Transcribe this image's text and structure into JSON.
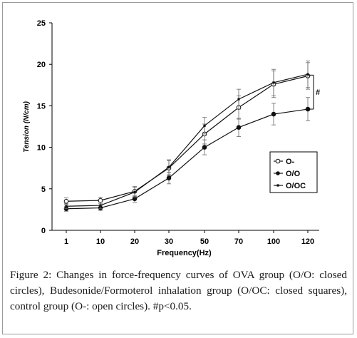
{
  "chart_data": {
    "type": "line",
    "xlabel": "Frequency(Hz)",
    "ylabel": "Tension (N/cm)",
    "categories": [
      "1",
      "10",
      "20",
      "30",
      "50",
      "70",
      "100",
      "120"
    ],
    "ylim": [
      0,
      25
    ],
    "yticks": [
      "0",
      "5",
      "10",
      "15",
      "20",
      "25"
    ],
    "grid": false,
    "legend_position": "right-middle",
    "series": [
      {
        "name": "O-",
        "marker": "open-circle",
        "values": [
          3.5,
          3.6,
          4.7,
          7.5,
          11.6,
          14.8,
          17.6,
          18.6
        ],
        "errors": [
          0.4,
          0.4,
          0.6,
          0.9,
          1.2,
          1.4,
          1.6,
          1.6
        ]
      },
      {
        "name": "O/O",
        "marker": "closed-circle",
        "values": [
          2.6,
          2.7,
          3.8,
          6.3,
          10.0,
          12.4,
          14.0,
          14.6
        ],
        "errors": [
          0.3,
          0.3,
          0.4,
          0.7,
          0.9,
          1.1,
          1.3,
          1.4
        ]
      },
      {
        "name": "O/OC",
        "marker": "closed-square",
        "values": [
          2.9,
          3.0,
          4.6,
          7.6,
          12.6,
          15.8,
          17.8,
          18.8
        ],
        "errors": [
          0.3,
          0.4,
          0.6,
          0.9,
          1.0,
          1.2,
          1.6,
          1.6
        ]
      }
    ],
    "annotation": "#"
  },
  "caption": "Figure 2: Changes in force-frequency curves of OVA group (O/O: closed circles), Budesonide/Formoterol inhalation group (O/OC: closed squares), control group (O-: open circles). #p<0.05."
}
